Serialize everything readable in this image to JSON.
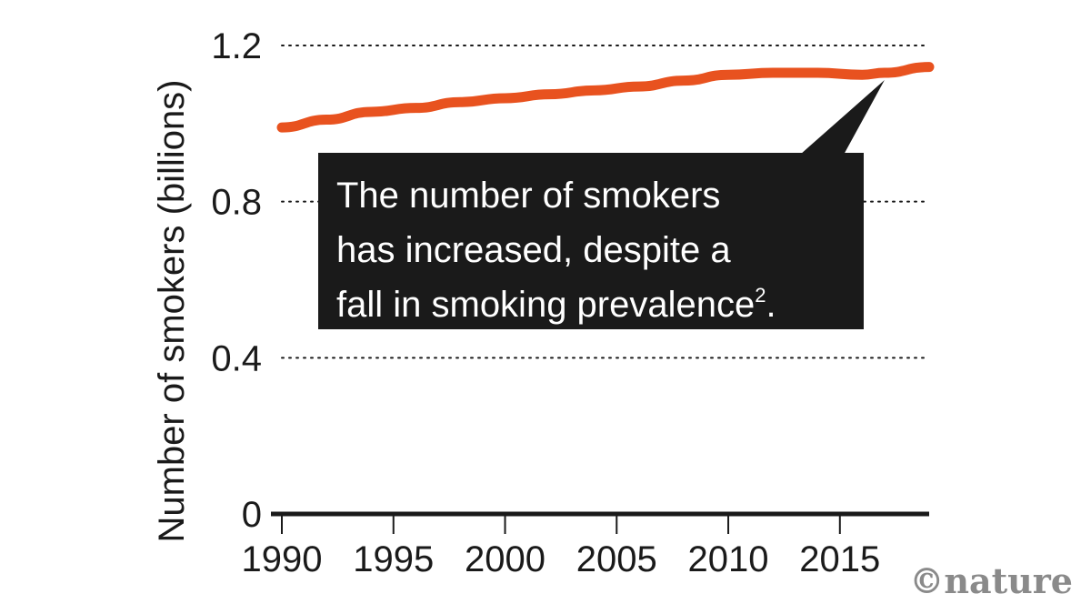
{
  "chart_data": {
    "type": "line",
    "title": "",
    "xlabel": "",
    "ylabel": "Number of smokers (billions)",
    "x": [
      1990,
      1992,
      1994,
      1996,
      1998,
      2000,
      2002,
      2004,
      2006,
      2008,
      2010,
      2012,
      2014,
      2016,
      2017,
      2019
    ],
    "series": [
      {
        "values": [
          0.99,
          1.01,
          1.03,
          1.04,
          1.055,
          1.065,
          1.075,
          1.085,
          1.095,
          1.11,
          1.125,
          1.13,
          1.13,
          1.125,
          1.13,
          1.145
        ],
        "color": "#e8521f"
      }
    ],
    "xlim": [
      1990,
      2019
    ],
    "ylim": [
      0,
      1.2
    ],
    "x_ticks": [
      1990,
      1995,
      2000,
      2005,
      2010,
      2015
    ],
    "x_tick_labels": [
      "1990",
      "1995",
      "2000",
      "2005",
      "2010",
      "2015"
    ],
    "y_ticks": [
      0,
      0.4,
      0.8,
      1.2
    ],
    "y_tick_labels": [
      "0",
      "0.4",
      "0.8",
      "1.2"
    ],
    "grid": "dotted horizontal",
    "annotation": {
      "lines": [
        "The number of smokers",
        "has increased, despite a",
        "fall in smoking prevalence"
      ],
      "superscript": "2",
      "trailing": ".",
      "points_to_x": 2017,
      "background": "#1a1a1a"
    }
  },
  "credit": "©nature",
  "colors": {
    "line": "#e8521f",
    "axis": "#1a1a1a",
    "grid": "#1a1a1a",
    "callout_bg": "#1a1a1a",
    "credit": "#8a8a8a"
  }
}
